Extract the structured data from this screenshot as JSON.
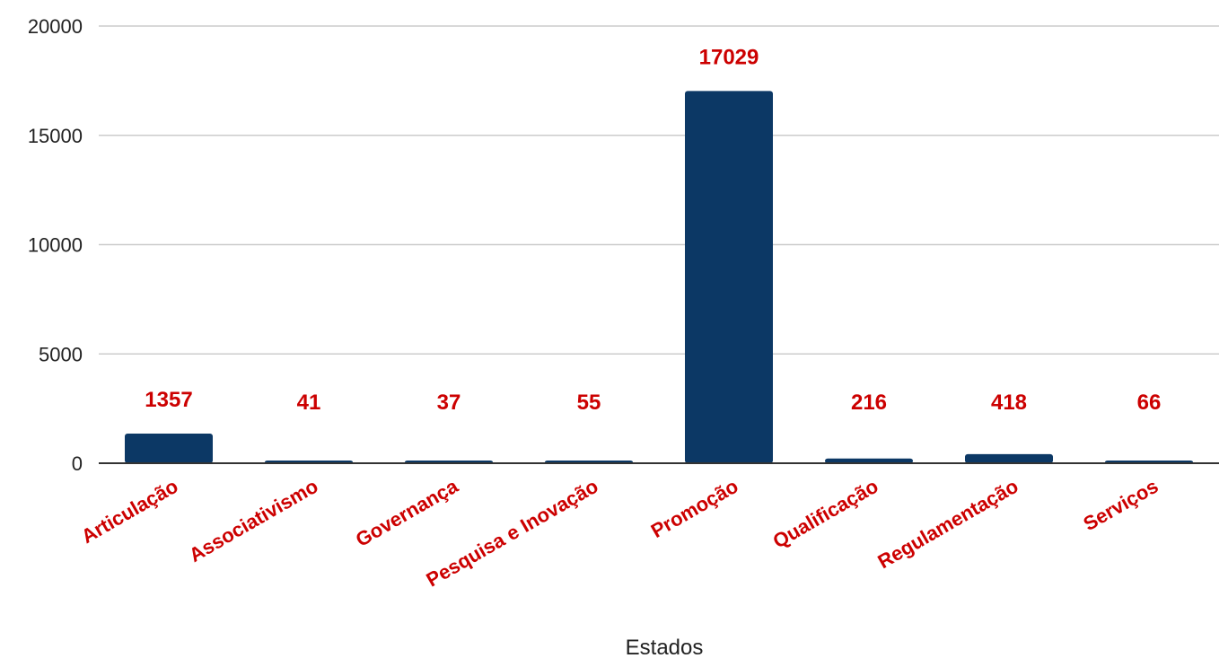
{
  "chart_data": {
    "type": "bar",
    "title": "",
    "xlabel": "Estados",
    "ylabel": "",
    "categories": [
      "Articulação",
      "Associativismo",
      "Governança",
      "Pesquisa e Inovação",
      "Promoção",
      "Qualificação",
      "Regulamentação",
      "Serviços"
    ],
    "values": [
      1357,
      41,
      37,
      55,
      17029,
      216,
      418,
      66
    ],
    "ylim": [
      0,
      20000
    ],
    "yticks": [
      0,
      5000,
      10000,
      15000,
      20000
    ],
    "grid": true,
    "legend": "none",
    "colors": {
      "bar": "#0c3865",
      "label": "#cc0000",
      "grid": "#cccccc",
      "axis": "#333333"
    }
  }
}
